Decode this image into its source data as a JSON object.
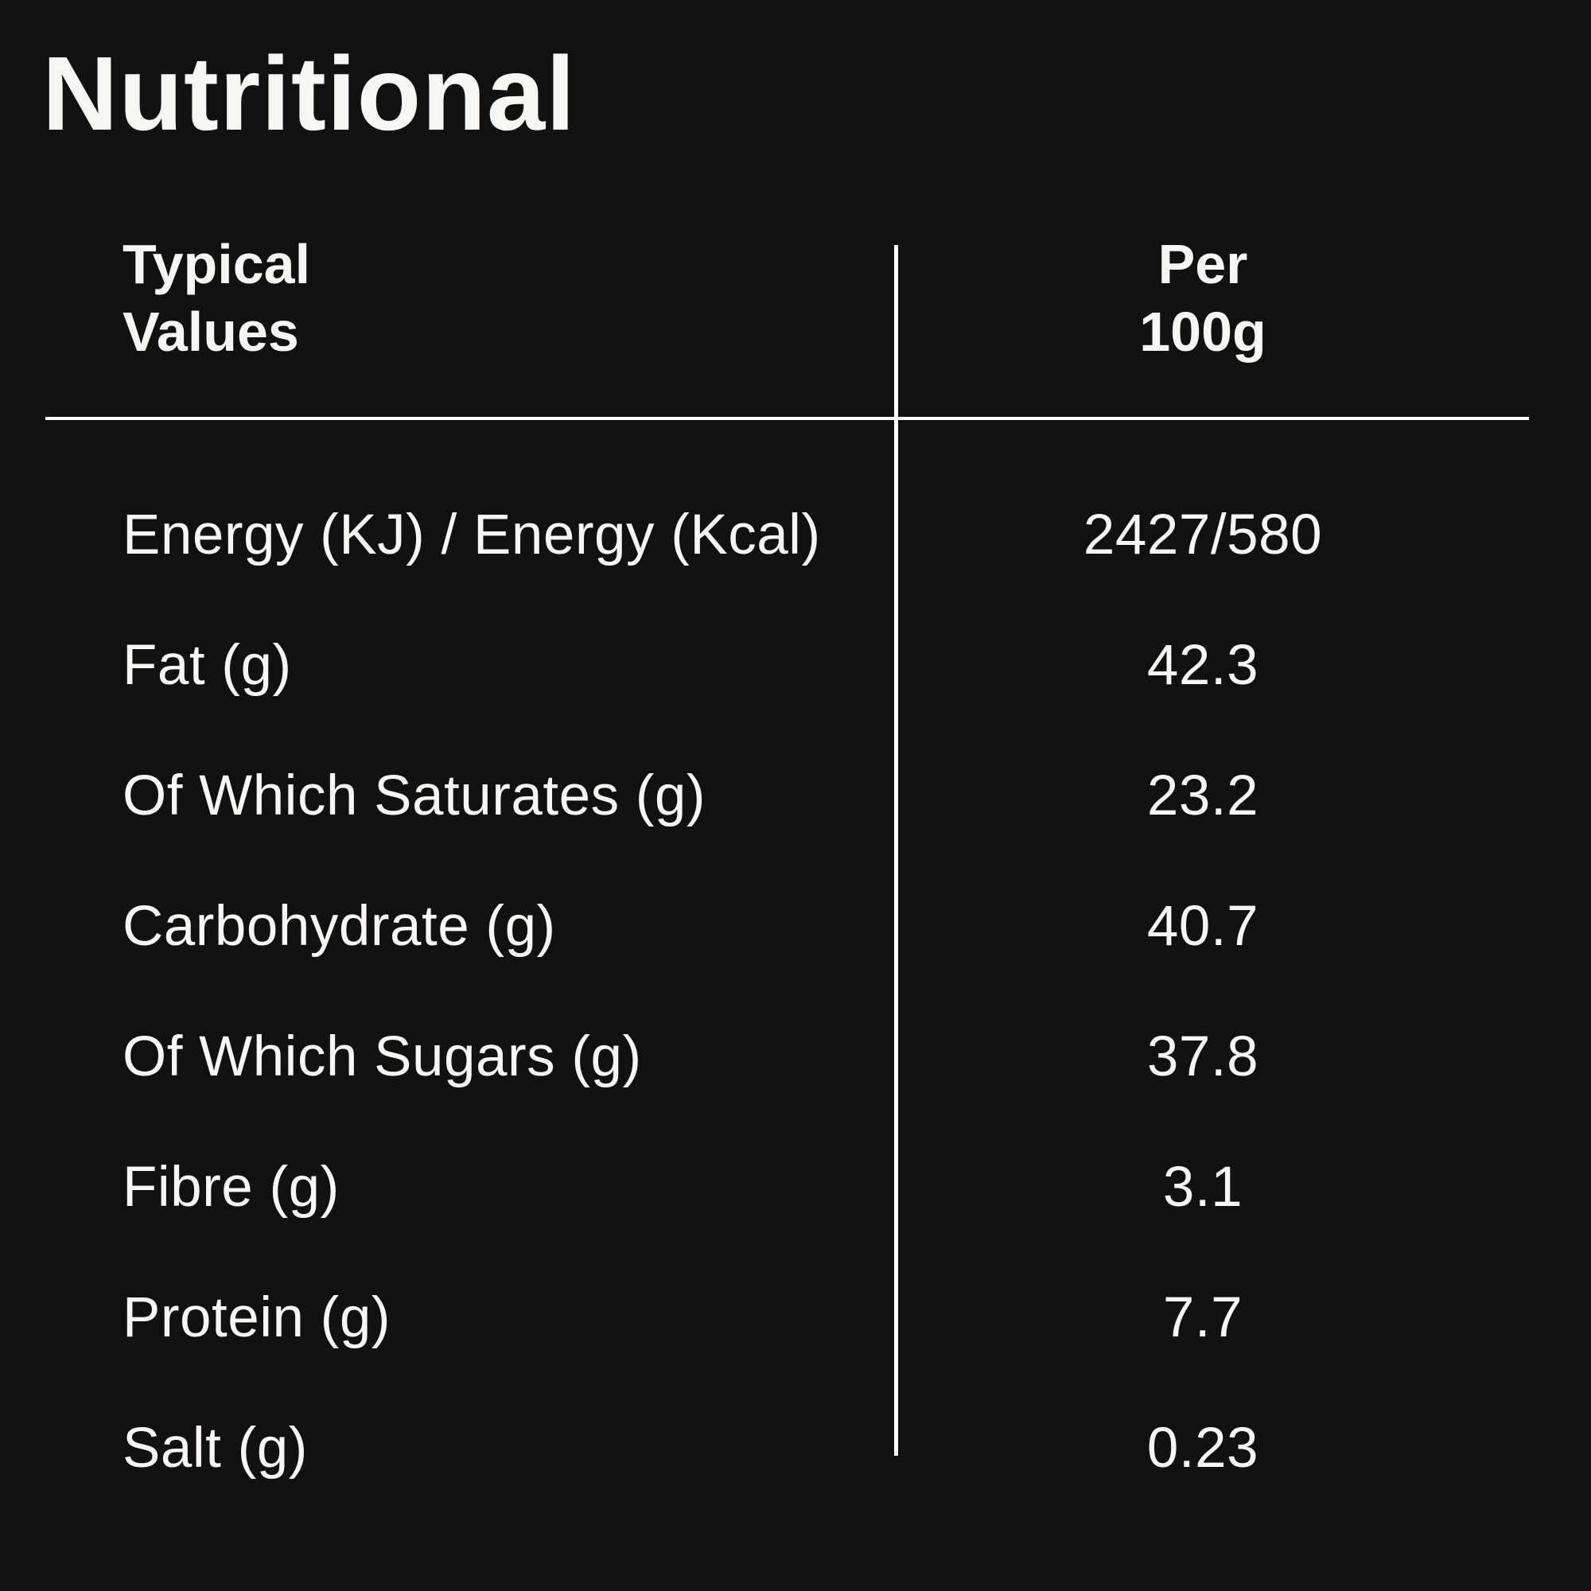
{
  "page": {
    "background": "#121010",
    "text_color": "#f8f6f3",
    "line_color": "#fdfcf8"
  },
  "title": "Nutritional",
  "table": {
    "headers": {
      "left": "Typical\nValues",
      "right": "Per\n100g"
    },
    "rows": [
      {
        "label": "Energy (KJ) / Energy (Kcal)",
        "value": "2427/580"
      },
      {
        "label": "Fat (g)",
        "value": "42.3"
      },
      {
        "label": "Of Which Saturates (g)",
        "value": "23.2"
      },
      {
        "label": "Carbohydrate (g)",
        "value": "40.7"
      },
      {
        "label": "Of Which Sugars (g)",
        "value": "37.8"
      },
      {
        "label": "Fibre (g)",
        "value": "3.1"
      },
      {
        "label": "Protein (g)",
        "value": "7.7"
      },
      {
        "label": "Salt (g)",
        "value": "0.23"
      }
    ]
  }
}
